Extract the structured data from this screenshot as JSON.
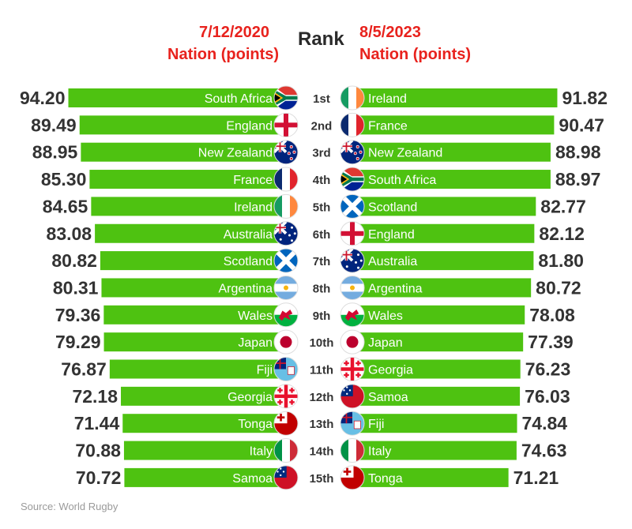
{
  "header": {
    "left_date": "7/12/2020",
    "left_sub": "Nation (points)",
    "center": "Rank",
    "right_date": "8/5/2023",
    "right_sub": "Nation (points)"
  },
  "source": "Source: World Rugby",
  "colors": {
    "bar": "#4ec211",
    "header_red": "#e8221d",
    "value_text": "#333333",
    "rank_text": "#333333"
  },
  "chart_data": [
    {
      "type": "bar",
      "orientation": "horizontal",
      "side": "left",
      "title": "7/12/2020",
      "subtitle": "Nation (points)",
      "categories": [
        "South Africa",
        "England",
        "New Zealand",
        "France",
        "Ireland",
        "Australia",
        "Scotland",
        "Argentina",
        "Wales",
        "Japan",
        "Fiji",
        "Georgia",
        "Tonga",
        "Italy",
        "Samoa"
      ],
      "ranks": [
        "1st",
        "2nd",
        "3rd",
        "4th",
        "5th",
        "6th",
        "7th",
        "8th",
        "9th",
        "10th",
        "11th",
        "12th",
        "13th",
        "14th",
        "15th"
      ],
      "values": [
        94.2,
        89.49,
        88.95,
        85.3,
        84.65,
        83.08,
        80.82,
        80.31,
        79.36,
        79.29,
        76.87,
        72.18,
        71.44,
        70.88,
        70.72
      ],
      "value_labels": [
        "94.20",
        "89.49",
        "88.95",
        "85.30",
        "84.65",
        "83.08",
        "80.82",
        "80.31",
        "79.36",
        "79.29",
        "76.87",
        "72.18",
        "71.44",
        "70.88",
        "70.72"
      ],
      "flag_icons": [
        "south-africa-flag-icon",
        "england-flag-icon",
        "new-zealand-flag-icon",
        "france-flag-icon",
        "ireland-flag-icon",
        "australia-flag-icon",
        "scotland-flag-icon",
        "argentina-flag-icon",
        "wales-flag-icon",
        "japan-flag-icon",
        "fiji-flag-icon",
        "georgia-flag-icon",
        "tonga-flag-icon",
        "italy-flag-icon",
        "samoa-flag-icon"
      ]
    },
    {
      "type": "bar",
      "orientation": "horizontal",
      "side": "right",
      "title": "8/5/2023",
      "subtitle": "Nation (points)",
      "categories": [
        "Ireland",
        "France",
        "New Zealand",
        "South Africa",
        "Scotland",
        "England",
        "Australia",
        "Argentina",
        "Wales",
        "Japan",
        "Georgia",
        "Samoa",
        "Fiji",
        "Italy",
        "Tonga"
      ],
      "values": [
        91.82,
        90.47,
        88.98,
        88.97,
        82.77,
        82.12,
        81.8,
        80.72,
        78.08,
        77.39,
        76.23,
        76.03,
        74.84,
        74.63,
        71.21
      ],
      "value_labels": [
        "91.82",
        "90.47",
        "88.98",
        "88.97",
        "82.77",
        "82.12",
        "81.80",
        "80.72",
        "78.08",
        "77.39",
        "76.23",
        "76.03",
        "74.84",
        "74.63",
        "71.21"
      ],
      "flag_icons": [
        "ireland-flag-icon",
        "france-flag-icon",
        "new-zealand-flag-icon",
        "south-africa-flag-icon",
        "scotland-flag-icon",
        "england-flag-icon",
        "australia-flag-icon",
        "argentina-flag-icon",
        "wales-flag-icon",
        "japan-flag-icon",
        "georgia-flag-icon",
        "samoa-flag-icon",
        "fiji-flag-icon",
        "italy-flag-icon",
        "tonga-flag-icon"
      ]
    }
  ]
}
